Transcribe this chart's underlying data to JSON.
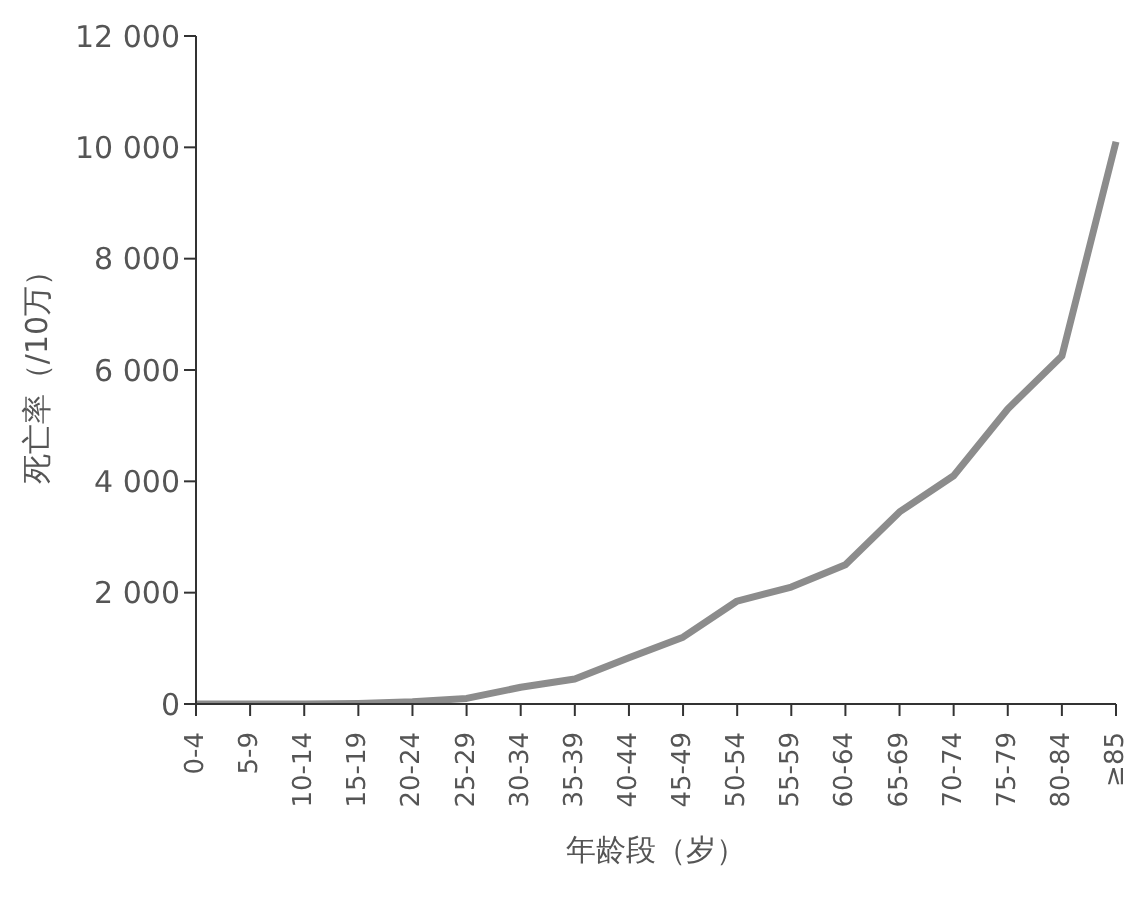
{
  "chart_data": {
    "type": "line",
    "xlabel": "年龄段（岁）",
    "ylabel": "死亡率（/10万）",
    "categories": [
      "0-4",
      "5-9",
      "10-14",
      "15-19",
      "20-24",
      "25-29",
      "30-34",
      "35-39",
      "40-44",
      "45-49",
      "50-54",
      "55-59",
      "60-64",
      "65-69",
      "70-74",
      "75-79",
      "80-84",
      "≥85"
    ],
    "series": [
      {
        "color": "#8c8c8c",
        "values": [
          0,
          0,
          0,
          10,
          40,
          100,
          300,
          450,
          830,
          1200,
          1850,
          2100,
          2500,
          3450,
          4100,
          5300,
          6250,
          10100
        ]
      }
    ],
    "ylim": [
      0,
      12000
    ],
    "yticks": [
      {
        "value": 0,
        "label": "0"
      },
      {
        "value": 2000,
        "label": "2 000"
      },
      {
        "value": 4000,
        "label": "4 000"
      },
      {
        "value": 6000,
        "label": "6 000"
      },
      {
        "value": 8000,
        "label": "8 000"
      },
      {
        "value": 10000,
        "label": "10 000"
      },
      {
        "value": 12000,
        "label": "12 000"
      }
    ],
    "grid": false,
    "legend": false,
    "marker": "none",
    "line_style": "solid"
  }
}
